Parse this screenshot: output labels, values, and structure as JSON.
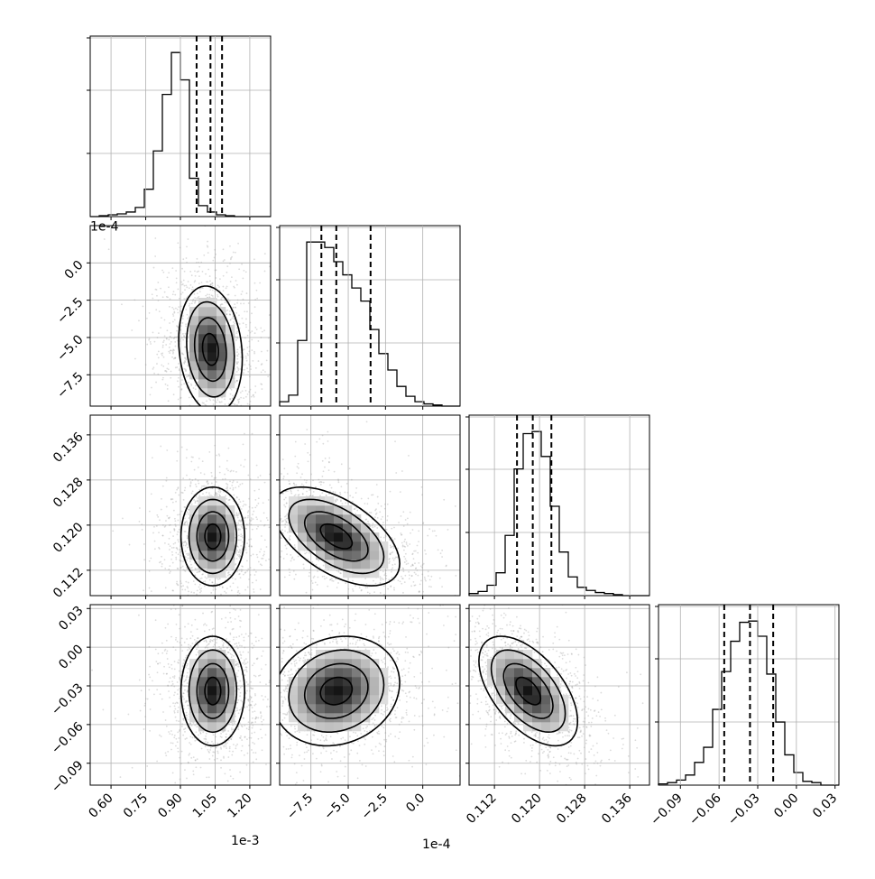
{
  "chart_data": {
    "type": "corner",
    "title": "",
    "grid": true,
    "parameters": [
      {
        "label": "",
        "offset_label": "1e-3",
        "ticks": [
          0.6,
          0.75,
          0.9,
          1.05,
          1.2
        ],
        "tick_labels": [
          "0.60",
          "0.75",
          "0.90",
          "1.05",
          "1.20"
        ],
        "range": [
          0.51,
          1.29
        ]
      },
      {
        "label": "",
        "offset_label": "1e-4",
        "ticks": [
          -7.5,
          -5.0,
          -2.5,
          0.0
        ],
        "tick_labels": [
          "−7.5",
          "−5.0",
          "−2.5",
          "0.0"
        ],
        "range": [
          -9.6,
          2.5
        ]
      },
      {
        "label": "",
        "offset_label": "",
        "ticks": [
          0.112,
          0.12,
          0.128,
          0.136
        ],
        "tick_labels": [
          "0.112",
          "0.120",
          "0.128",
          "0.136"
        ],
        "range": [
          0.1075,
          0.1395
        ]
      },
      {
        "label": "",
        "offset_label": "",
        "ticks": [
          -0.09,
          -0.06,
          -0.03,
          0.0,
          0.03
        ],
        "tick_labels": [
          "−0.09",
          "−0.06",
          "−0.03",
          "0.00",
          "0.03"
        ],
        "range": [
          -0.107,
          0.033
        ]
      }
    ],
    "diagonal": [
      {
        "param": 0,
        "quantiles": [
          0.97,
          1.03,
          1.08
        ],
        "bin_start": 0.51,
        "bin_width": 0.039,
        "counts": [
          0,
          1,
          2,
          3,
          5,
          10,
          30,
          72,
          134,
          180,
          150,
          42,
          12,
          5,
          2,
          1,
          0,
          0,
          0,
          0
        ]
      },
      {
        "param": 1,
        "quantiles": [
          -6.8,
          -5.8,
          -3.5
        ],
        "bin_start": -9.6,
        "bin_width": 0.605,
        "counts": [
          4,
          10,
          60,
          150,
          150,
          145,
          132,
          120,
          108,
          96,
          70,
          48,
          33,
          18,
          9,
          4,
          2,
          1,
          0,
          0
        ]
      },
      {
        "param": 2,
        "quantiles": [
          0.116,
          0.1188,
          0.1221
        ],
        "bin_start": 0.1075,
        "bin_width": 0.0016,
        "counts": [
          2,
          4,
          10,
          22,
          58,
          122,
          156,
          158,
          134,
          86,
          42,
          18,
          8,
          5,
          3,
          2,
          1,
          0,
          0,
          0
        ]
      },
      {
        "param": 3,
        "quantiles": [
          -0.056,
          -0.036,
          -0.018
        ],
        "bin_start": -0.107,
        "bin_width": 0.007,
        "counts": [
          1,
          2,
          4,
          8,
          18,
          30,
          60,
          90,
          114,
          129,
          130,
          118,
          88,
          50,
          24,
          10,
          3,
          2,
          0,
          0
        ]
      }
    ],
    "pairs": [
      {
        "x": 0,
        "y": 1,
        "mean": [
          1.03,
          -5.8
        ],
        "sd": [
          0.055,
          1.7
        ],
        "rho": -0.15
      },
      {
        "x": 0,
        "y": 2,
        "mean": [
          1.04,
          0.118
        ],
        "sd": [
          0.055,
          0.0035
        ],
        "rho": 0.0
      },
      {
        "x": 1,
        "y": 2,
        "mean": [
          -5.8,
          0.118
        ],
        "sd": [
          1.7,
          0.0035
        ],
        "rho": -0.55
      },
      {
        "x": 0,
        "y": 3,
        "mean": [
          1.04,
          -0.034
        ],
        "sd": [
          0.055,
          0.017
        ],
        "rho": 0.0
      },
      {
        "x": 1,
        "y": 3,
        "mean": [
          -5.8,
          -0.034
        ],
        "sd": [
          1.7,
          0.017
        ],
        "rho": 0.15
      },
      {
        "x": 2,
        "y": 3,
        "mean": [
          0.118,
          -0.034
        ],
        "sd": [
          0.0035,
          0.017
        ],
        "rho": -0.55
      }
    ],
    "contour_levels_sigma": [
      0.5,
      1.0,
      1.5,
      2.0
    ]
  }
}
